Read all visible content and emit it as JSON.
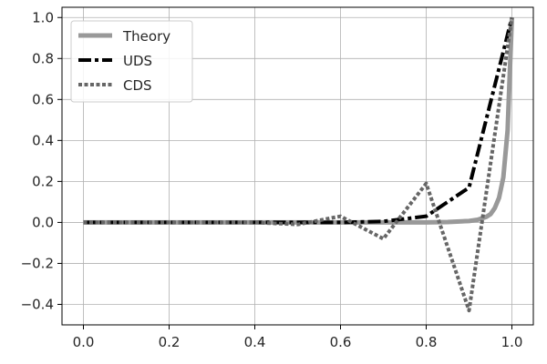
{
  "chart_data": {
    "type": "line",
    "title": "",
    "xlabel": "",
    "ylabel": "",
    "xlim": [
      -0.05,
      1.05
    ],
    "ylim": [
      -0.5,
      1.05
    ],
    "grid": true,
    "legend_position": "top-left",
    "x_ticks": [
      0.0,
      0.2,
      0.4,
      0.6,
      0.8,
      1.0
    ],
    "x_tick_labels": [
      "0.0",
      "0.2",
      "0.4",
      "0.6",
      "0.8",
      "1.0"
    ],
    "y_ticks": [
      -0.4,
      -0.2,
      0.0,
      0.2,
      0.4,
      0.6,
      0.8,
      1.0
    ],
    "y_tick_labels": [
      "−0.4",
      "−0.2",
      "0.0",
      "0.2",
      "0.4",
      "0.6",
      "0.8",
      "1.0"
    ],
    "series": [
      {
        "name": "Theory",
        "color": "#999999",
        "style": "solid",
        "x": [
          0.0,
          0.5,
          0.7,
          0.8,
          0.85,
          0.9,
          0.92,
          0.94,
          0.95,
          0.96,
          0.97,
          0.98,
          0.99,
          1.0
        ],
        "y": [
          0.0,
          0.0,
          0.0,
          0.0,
          0.002,
          0.007,
          0.013,
          0.027,
          0.04,
          0.07,
          0.12,
          0.22,
          0.45,
          1.0
        ]
      },
      {
        "name": "UDS",
        "color": "#000000",
        "style": "dashdot",
        "x": [
          0.0,
          0.1,
          0.2,
          0.3,
          0.4,
          0.5,
          0.6,
          0.7,
          0.8,
          0.9,
          1.0
        ],
        "y": [
          0.0,
          0.0,
          0.0,
          0.0,
          0.0,
          0.0,
          0.0,
          0.005,
          0.03,
          0.17,
          1.0
        ]
      },
      {
        "name": "CDS",
        "color": "#666666",
        "style": "dotted",
        "x": [
          0.0,
          0.1,
          0.2,
          0.3,
          0.4,
          0.5,
          0.6,
          0.7,
          0.8,
          0.9,
          1.0
        ],
        "y": [
          0.0,
          0.0,
          0.0,
          0.0,
          0.0,
          -0.01,
          0.03,
          -0.08,
          0.19,
          -0.43,
          1.0
        ]
      }
    ]
  }
}
